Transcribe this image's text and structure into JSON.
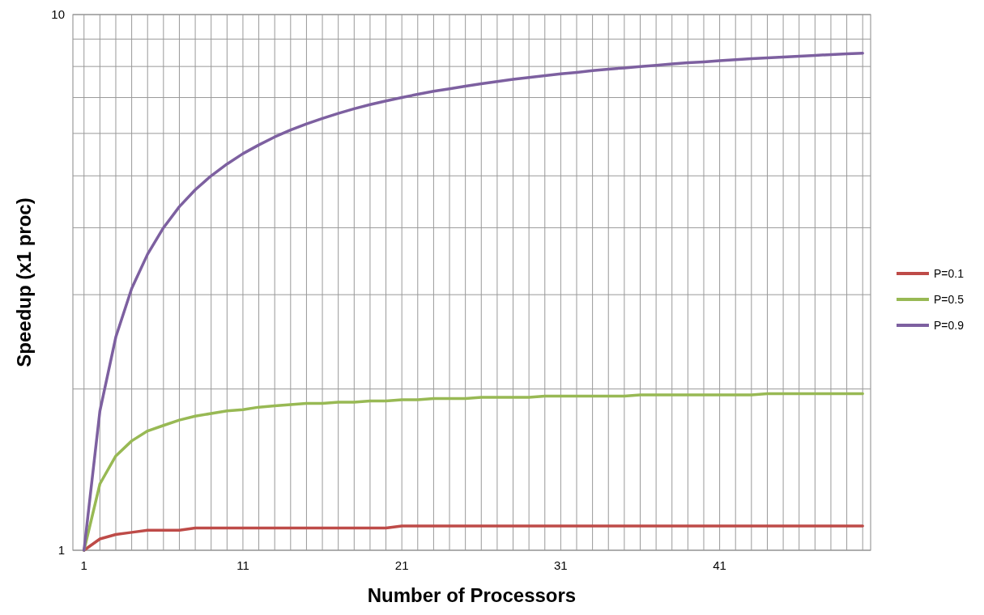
{
  "chart_data": {
    "type": "line",
    "xlabel": "Number of Processors",
    "ylabel": "Speedup (x1 proc)",
    "log": "y",
    "grid": true,
    "legend": "right",
    "marker": "none",
    "line_style": "solid",
    "x": [
      1,
      2,
      3,
      4,
      5,
      6,
      7,
      8,
      9,
      10,
      11,
      12,
      13,
      14,
      15,
      16,
      17,
      18,
      19,
      20,
      21,
      22,
      23,
      24,
      25,
      26,
      27,
      28,
      29,
      30,
      31,
      32,
      33,
      34,
      35,
      36,
      37,
      38,
      39,
      40,
      41,
      42,
      43,
      44,
      45,
      46,
      47,
      48,
      49,
      50
    ],
    "xlim": [
      0.3,
      50.5
    ],
    "xticks": [
      1,
      {
        "value": 2,
        "label": null
      },
      {
        "value": 3,
        "label": null
      },
      {
        "value": 4,
        "label": null
      },
      {
        "value": 5,
        "label": null
      },
      {
        "value": 6,
        "label": null
      },
      {
        "value": 7,
        "label": null
      },
      {
        "value": 8,
        "label": null
      },
      {
        "value": 9,
        "label": null
      },
      {
        "value": 10,
        "label": null
      },
      11,
      {
        "value": 12,
        "label": null
      },
      {
        "value": 13,
        "label": null
      },
      {
        "value": 14,
        "label": null
      },
      {
        "value": 15,
        "label": null
      },
      {
        "value": 16,
        "label": null
      },
      {
        "value": 17,
        "label": null
      },
      {
        "value": 18,
        "label": null
      },
      {
        "value": 19,
        "label": null
      },
      {
        "value": 20,
        "label": null
      },
      21,
      {
        "value": 22,
        "label": null
      },
      {
        "value": 23,
        "label": null
      },
      {
        "value": 24,
        "label": null
      },
      {
        "value": 25,
        "label": null
      },
      {
        "value": 26,
        "label": null
      },
      {
        "value": 27,
        "label": null
      },
      {
        "value": 28,
        "label": null
      },
      {
        "value": 29,
        "label": null
      },
      {
        "value": 30,
        "label": null
      },
      31,
      {
        "value": 32,
        "label": null
      },
      {
        "value": 33,
        "label": null
      },
      {
        "value": 34,
        "label": null
      },
      {
        "value": 35,
        "label": null
      },
      {
        "value": 36,
        "label": null
      },
      {
        "value": 37,
        "label": null
      },
      {
        "value": 38,
        "label": null
      },
      {
        "value": 39,
        "label": null
      },
      {
        "value": 40,
        "label": null
      },
      41,
      {
        "value": 42,
        "label": null
      },
      {
        "value": 43,
        "label": null
      },
      {
        "value": 44,
        "label": null
      },
      {
        "value": 45,
        "label": null
      },
      {
        "value": 46,
        "label": null
      },
      {
        "value": 47,
        "label": null
      },
      {
        "value": 48,
        "label": null
      },
      {
        "value": 49,
        "label": null
      },
      {
        "value": 50,
        "label": null
      }
    ],
    "ylim": [
      1,
      10
    ],
    "yticks": [
      1,
      {
        "value": 2,
        "label": null
      },
      {
        "value": 3,
        "label": null
      },
      {
        "value": 4,
        "label": null
      },
      {
        "value": 5,
        "label": null
      },
      {
        "value": 6,
        "label": null
      },
      {
        "value": 7,
        "label": null
      },
      {
        "value": 8,
        "label": null
      },
      {
        "value": 9,
        "label": null
      },
      10
    ],
    "series": [
      {
        "name": "P=0.1",
        "color": "#be4b48",
        "values": [
          1,
          1.05,
          1.07,
          1.08,
          1.09,
          1.09,
          1.09,
          1.1,
          1.1,
          1.1,
          1.1,
          1.1,
          1.1,
          1.1,
          1.1,
          1.1,
          1.1,
          1.1,
          1.1,
          1.1,
          1.11,
          1.11,
          1.11,
          1.11,
          1.11,
          1.11,
          1.11,
          1.11,
          1.11,
          1.11,
          1.11,
          1.11,
          1.11,
          1.11,
          1.11,
          1.11,
          1.11,
          1.11,
          1.11,
          1.11,
          1.11,
          1.11,
          1.11,
          1.11,
          1.11,
          1.11,
          1.11,
          1.11,
          1.11,
          1.11
        ]
      },
      {
        "name": "P=0.5",
        "color": "#98b954",
        "values": [
          1,
          1.33,
          1.5,
          1.6,
          1.67,
          1.71,
          1.75,
          1.78,
          1.8,
          1.82,
          1.83,
          1.85,
          1.86,
          1.87,
          1.88,
          1.88,
          1.89,
          1.89,
          1.9,
          1.9,
          1.91,
          1.91,
          1.92,
          1.92,
          1.92,
          1.93,
          1.93,
          1.93,
          1.93,
          1.94,
          1.94,
          1.94,
          1.94,
          1.94,
          1.94,
          1.95,
          1.95,
          1.95,
          1.95,
          1.95,
          1.95,
          1.95,
          1.95,
          1.96,
          1.96,
          1.96,
          1.96,
          1.96,
          1.96,
          1.96
        ]
      },
      {
        "name": "P=0.9",
        "color": "#7d60a0",
        "values": [
          1,
          1.82,
          2.5,
          3.08,
          3.57,
          4,
          4.38,
          4.71,
          5,
          5.26,
          5.5,
          5.71,
          5.91,
          6.09,
          6.25,
          6.4,
          6.54,
          6.67,
          6.79,
          6.9,
          7,
          7.1,
          7.19,
          7.27,
          7.35,
          7.43,
          7.5,
          7.57,
          7.63,
          7.69,
          7.75,
          7.8,
          7.86,
          7.91,
          7.95,
          8,
          8.04,
          8.09,
          8.13,
          8.16,
          8.2,
          8.24,
          8.27,
          8.3,
          8.33,
          8.36,
          8.39,
          8.42,
          8.45,
          8.47
        ]
      }
    ]
  }
}
